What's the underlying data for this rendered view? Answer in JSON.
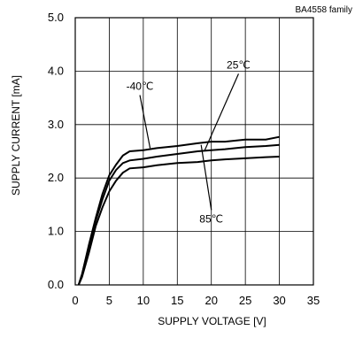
{
  "chart_data": {
    "type": "line",
    "title": "",
    "subtitle": "BA4558  family",
    "xlabel": "SUPPLY VOLTAGE [V]",
    "ylabel": "SUPPLY CURRENT [mA]",
    "xlim": [
      0,
      35
    ],
    "ylim": [
      0,
      5.0
    ],
    "xticks": [
      0,
      5,
      10,
      15,
      20,
      25,
      30,
      35
    ],
    "xtick_labels": [
      "0",
      "5",
      "10",
      "15",
      "20",
      "25",
      "30",
      "35"
    ],
    "yticks": [
      0,
      1,
      2,
      3,
      4,
      5
    ],
    "ytick_labels": [
      "0.0",
      "1.0",
      "2.0",
      "3.0",
      "4.0",
      "5.0"
    ],
    "grid": true,
    "series": [
      {
        "name": "-40℃",
        "x": [
          0.5,
          1,
          2,
          3,
          4,
          5,
          6,
          7,
          8,
          10,
          12,
          15,
          18,
          20,
          22,
          25,
          28,
          30
        ],
        "y": [
          0.0,
          0.2,
          0.75,
          1.25,
          1.7,
          2.05,
          2.25,
          2.42,
          2.5,
          2.52,
          2.56,
          2.6,
          2.65,
          2.68,
          2.68,
          2.72,
          2.72,
          2.77
        ]
      },
      {
        "name": "25℃",
        "x": [
          0.5,
          1,
          2,
          3,
          4,
          5,
          6,
          7,
          8,
          10,
          12,
          15,
          18,
          20,
          22,
          25,
          28,
          30
        ],
        "y": [
          0.0,
          0.2,
          0.7,
          1.2,
          1.6,
          1.95,
          2.15,
          2.28,
          2.33,
          2.36,
          2.4,
          2.45,
          2.5,
          2.52,
          2.54,
          2.58,
          2.6,
          2.62
        ]
      },
      {
        "name": "85℃",
        "x": [
          0.5,
          1,
          2,
          3,
          4,
          5,
          6,
          7,
          8,
          10,
          12,
          15,
          18,
          20,
          22,
          25,
          28,
          30
        ],
        "y": [
          0.0,
          0.15,
          0.6,
          1.1,
          1.45,
          1.75,
          1.95,
          2.1,
          2.18,
          2.2,
          2.24,
          2.28,
          2.3,
          2.33,
          2.35,
          2.37,
          2.39,
          2.4
        ]
      }
    ],
    "annotations": [
      {
        "text": "-40℃",
        "series": 0,
        "label_at": [
          9.5,
          3.65
        ],
        "point_at": [
          11.0,
          2.56
        ]
      },
      {
        "text": "25℃",
        "series": 1,
        "label_at": [
          24.0,
          4.05
        ],
        "point_at": [
          19.0,
          2.51
        ]
      },
      {
        "text": "85℃",
        "series": 2,
        "label_at": [
          20.0,
          1.17
        ],
        "point_at": [
          18.5,
          2.62
        ]
      }
    ]
  }
}
